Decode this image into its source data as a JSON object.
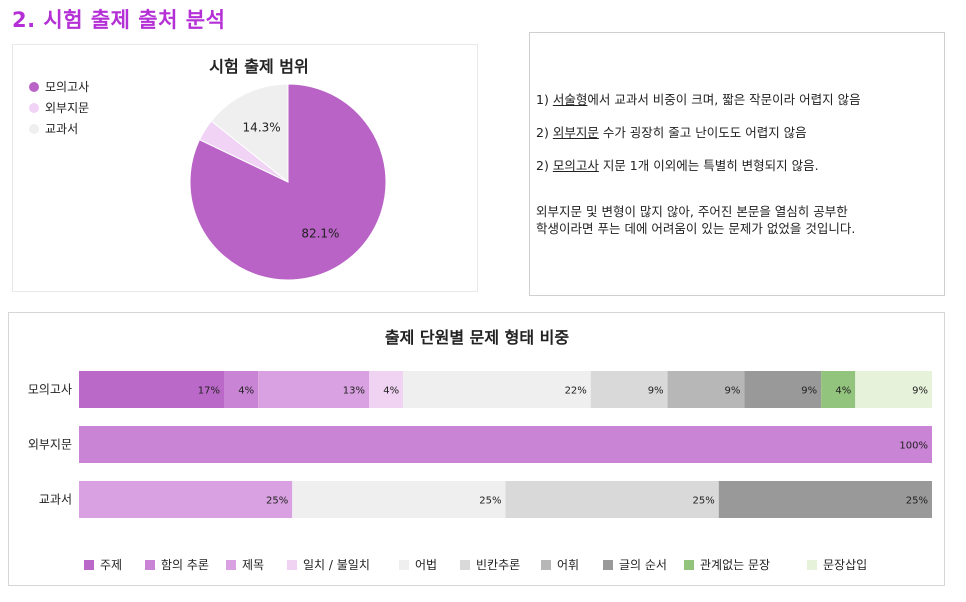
{
  "page": {
    "heading": "2. 시험 출제 출처 분석"
  },
  "colors": {
    "heading": "#b42fd6",
    "pie": [
      "#b963c6",
      "#f0d3f5",
      "#efefef"
    ],
    "bar": [
      "#bb69c9",
      "#ca84d6",
      "#d9a1e1",
      "#f0d2f3",
      "#efefef",
      "#d9d9d9",
      "#b7b7b7",
      "#999999",
      "#93c47d",
      "#e6f2da"
    ]
  },
  "notes": {
    "n1_num": "1)",
    "n1_key": "서술형",
    "n1_rest": "에서 교과서 비중이 크며, 짧은 작문이라 어렵지 않음",
    "n2_num": "2)",
    "n2_key": "외부지문",
    "n2_rest": " 수가 굉장히 줄고 난이도도 어렵지 않음",
    "n3_num": "2)",
    "n3_key": "모의고사",
    "n3_rest": " 지문 1개 이외에는 특별히 변형되지 않음.",
    "summary_line1": "외부지문 및 변형이 많지 않아, 주어진 본문을 열심히 공부한",
    "summary_line2": "학생이라면 푸는 데에 어려움이 있는 문제가 없었을 것입니다."
  },
  "chart_data": [
    {
      "type": "pie",
      "title": "시험 출제 범위",
      "labels": [
        "모의고사",
        "외부지문",
        "교과서"
      ],
      "values": [
        82.1,
        3.6,
        14.3
      ],
      "data_labels": [
        "82.1%",
        "",
        "14.3%"
      ],
      "legend": "top-left"
    },
    {
      "type": "bar",
      "orientation": "horizontal-stacked-100",
      "title": "출제 단원별 문제 형태 비중",
      "categories": [
        "모의고사",
        "외부지문",
        "교과서"
      ],
      "series": [
        {
          "name": "주제",
          "values": [
            17,
            0,
            0
          ]
        },
        {
          "name": "함의 추론",
          "values": [
            4,
            100,
            0
          ]
        },
        {
          "name": "제목",
          "values": [
            13,
            0,
            25
          ]
        },
        {
          "name": "일치 / 불일치",
          "values": [
            4,
            0,
            0
          ]
        },
        {
          "name": "어법",
          "values": [
            22,
            0,
            25
          ]
        },
        {
          "name": "빈칸추론",
          "values": [
            9,
            0,
            25
          ]
        },
        {
          "name": "어휘",
          "values": [
            9,
            0,
            0
          ]
        },
        {
          "name": "글의 순서",
          "values": [
            9,
            0,
            25
          ]
        },
        {
          "name": "관계없는 문장",
          "values": [
            4,
            0,
            0
          ]
        },
        {
          "name": "문장삽입",
          "values": [
            9,
            0,
            0
          ]
        }
      ],
      "xlim": [
        0,
        100
      ],
      "legend": "bottom"
    }
  ]
}
